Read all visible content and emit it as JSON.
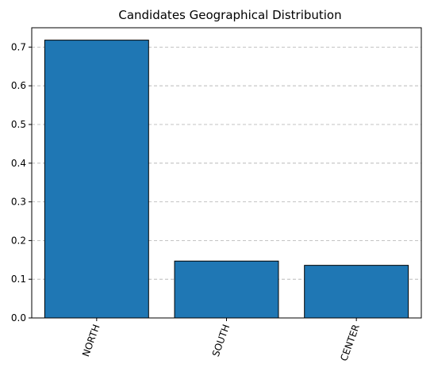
{
  "chart_data": {
    "type": "bar",
    "title": "Candidates Geographical Distribution",
    "xlabel": "",
    "ylabel": "",
    "categories": [
      "NORTH",
      "SOUTH",
      "CENTER"
    ],
    "values": [
      0.718,
      0.147,
      0.136
    ],
    "ylim": [
      0,
      0.75
    ],
    "yticks": [
      "0.0",
      "0.1",
      "0.2",
      "0.3",
      "0.4",
      "0.5",
      "0.6",
      "0.7"
    ],
    "grid": "y-dashed",
    "legend": "none",
    "colors": {
      "bar": "#1f77b4",
      "edge": "#000000",
      "grid": "#b0b0b0"
    }
  }
}
